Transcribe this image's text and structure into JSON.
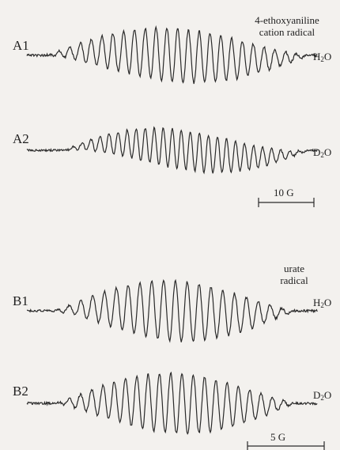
{
  "spectra": [
    {
      "id": "A1",
      "label": "A1",
      "solvent": "H",
      "solvent_sub": "2",
      "solvent_tail": "O"
    },
    {
      "id": "A2",
      "label": "A2",
      "solvent": "D",
      "solvent_sub": "2",
      "solvent_tail": "O"
    },
    {
      "id": "B1",
      "label": "B1",
      "solvent": "H",
      "solvent_sub": "2",
      "solvent_tail": "O"
    },
    {
      "id": "B2",
      "label": "B2",
      "solvent": "D",
      "solvent_sub": "2",
      "solvent_tail": "O"
    }
  ],
  "annotations": {
    "a_radical_line1": "4-ethoxyaniline",
    "a_radical_line2": "cation radical",
    "b_radical_line1": "urate",
    "b_radical_line2": "radical"
  },
  "scale_bars": {
    "a_scale": "10 G",
    "b_scale": "5 G"
  },
  "colors": {
    "trace": "#2a2a2a",
    "background": "#f3f1ee"
  }
}
